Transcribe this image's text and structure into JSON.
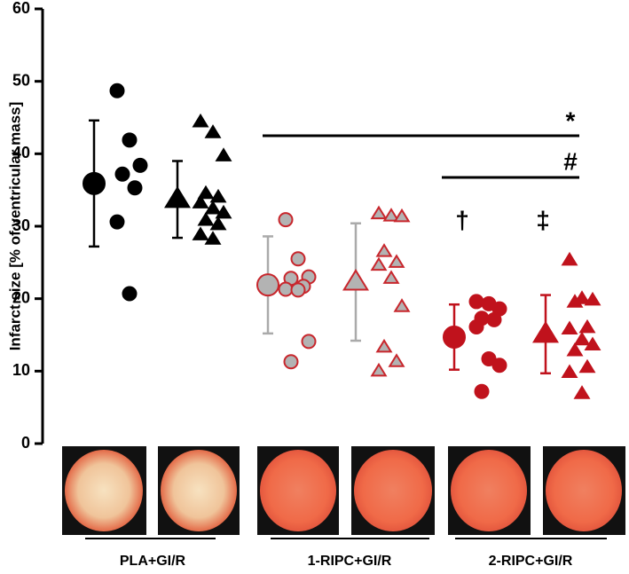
{
  "chart_data": {
    "type": "dot",
    "ylabel": "Infarct size [% of ventricular mass]",
    "ylim": [
      0,
      60
    ],
    "yticks": [
      0,
      10,
      20,
      30,
      40,
      50,
      60
    ],
    "groups": [
      {
        "label": "PLA+GI/R",
        "columns": [
          {
            "marker": "circle",
            "color": "#000000",
            "fill": "#000000",
            "mean": 35.9,
            "sd": 8.7,
            "values": [
              48.7,
              41.9,
              38.4,
              37.2,
              35.3,
              30.6,
              20.7
            ]
          },
          {
            "marker": "triangle",
            "color": "#000000",
            "fill": "#000000",
            "mean": 33.7,
            "sd": 5.3,
            "values": [
              44.4,
              42.9,
              39.7,
              34.5,
              34.0,
              33.2,
              32.4,
              31.8,
              30.8,
              30.2,
              28.8,
              28.2
            ]
          }
        ]
      },
      {
        "label": "1-RIPC+GI/R",
        "columns": [
          {
            "marker": "circle",
            "color": "#c8262c",
            "fill": "#b3b3b3",
            "mean": 21.9,
            "sd": 6.7,
            "values": [
              30.9,
              25.5,
              23.0,
              22.8,
              21.7,
              21.3,
              21.2,
              14.1,
              11.3
            ]
          },
          {
            "marker": "triangle",
            "color": "#c8262c",
            "fill": "#b3b3b3",
            "mean": 22.3,
            "sd": 8.1,
            "values": [
              31.7,
              31.4,
              31.3,
              26.5,
              25.0,
              24.6,
              22.8,
              18.9,
              13.3,
              11.3,
              10.0
            ]
          }
        ]
      },
      {
        "label": "2-RIPC+GI/R",
        "columns": [
          {
            "marker": "circle",
            "color": "#c0121c",
            "fill": "#c0121c",
            "mean": 14.7,
            "sd": 4.5,
            "values": [
              19.6,
              19.3,
              18.6,
              17.3,
              17.1,
              16.1,
              11.7,
              10.8,
              7.2
            ]
          },
          {
            "marker": "triangle",
            "color": "#c0121c",
            "fill": "#c0121c",
            "mean": 15.1,
            "sd": 5.4,
            "values": [
              25.3,
              20.0,
              19.8,
              19.5,
              16.0,
              15.8,
              14.3,
              13.6,
              12.8,
              10.5,
              9.8,
              6.9
            ]
          }
        ]
      }
    ],
    "annotations": [
      "*",
      "#",
      "†",
      "‡"
    ]
  }
}
